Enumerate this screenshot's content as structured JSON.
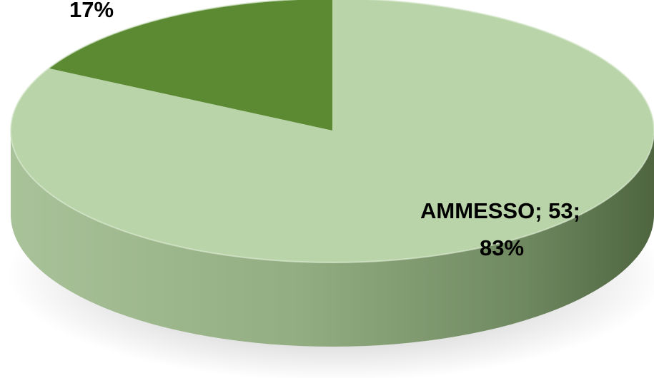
{
  "chart_data": {
    "type": "pie",
    "style": "3d",
    "title": "",
    "slices": [
      {
        "label": "AMMESSO",
        "value": 53,
        "percent": 83,
        "color": "#b9d4a9",
        "data_label": "AMMESSO; 53;",
        "data_label_line2": "83%"
      },
      {
        "label": "",
        "value": 11,
        "percent": 17,
        "color": "#5b8a32",
        "data_label": "",
        "data_label_line2": "17%"
      }
    ],
    "start_angle_deg": 0,
    "direction": "clockwise",
    "legend": "none"
  }
}
